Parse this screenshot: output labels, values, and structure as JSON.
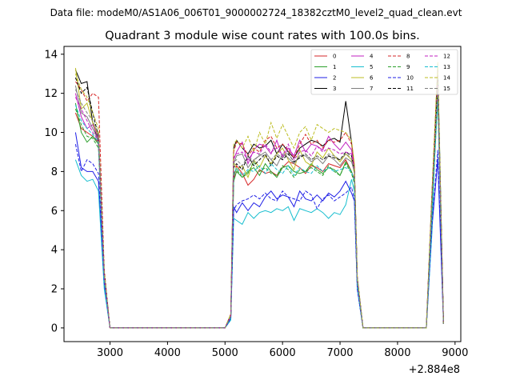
{
  "figure": {
    "suptitle": "Data file: modeM0/AS1A06_006T01_9000002724_18382cztM0_level2_quad_clean.evt"
  },
  "chart_data": {
    "type": "line",
    "title": "Quadrant 3 module wise count rates with 100.0s bins.",
    "xlabel": "",
    "ylabel": "",
    "x_offset_label": "+2.884e8",
    "xlim": [
      2200,
      9100
    ],
    "ylim": [
      -0.7,
      14.4
    ],
    "xticks": [
      3000,
      4000,
      5000,
      6000,
      7000,
      8000,
      9000
    ],
    "yticks": [
      0,
      2,
      4,
      6,
      8,
      10,
      12,
      14
    ],
    "grid": false,
    "legend": {
      "location": "top-right",
      "ncol": 4
    },
    "x": [
      2400,
      2500,
      2600,
      2700,
      2800,
      2900,
      3000,
      3100,
      3200,
      3300,
      3400,
      3500,
      3600,
      3700,
      3800,
      3900,
      4000,
      4100,
      4200,
      4300,
      4400,
      4500,
      4600,
      4700,
      4800,
      4900,
      5000,
      5100,
      5150,
      5200,
      5300,
      5400,
      5500,
      5600,
      5700,
      5800,
      5900,
      6000,
      6100,
      6200,
      6300,
      6400,
      6500,
      6600,
      6700,
      6800,
      6900,
      7000,
      7100,
      7200,
      7250,
      7300,
      7400,
      7500,
      7600,
      7700,
      7800,
      7900,
      8000,
      8100,
      8200,
      8300,
      8400,
      8500,
      8600,
      8700,
      8800
    ],
    "series": [
      {
        "name": "0",
        "color": "#d62728",
        "dash": false,
        "values": [
          11.0,
          10.2,
          10.0,
          9.8,
          9.5,
          2.5,
          0,
          0,
          0,
          0,
          0,
          0,
          0,
          0,
          0,
          0,
          0,
          0,
          0,
          0,
          0,
          0,
          0,
          0,
          0,
          0,
          0,
          0.6,
          7.6,
          8.3,
          7.9,
          7.3,
          7.6,
          8.1,
          7.9,
          8.0,
          7.8,
          8.2,
          8.5,
          8.4,
          8.2,
          7.9,
          8.3,
          8.2,
          8.0,
          8.4,
          8.3,
          8.2,
          8.6,
          8.0,
          7.6,
          2.3,
          0,
          0,
          0,
          0,
          0,
          0,
          0,
          0,
          0,
          0,
          0,
          0,
          6.0,
          12.5,
          0.2
        ]
      },
      {
        "name": "1",
        "color": "#2ca02c",
        "dash": false,
        "values": [
          11.5,
          10.0,
          9.5,
          9.8,
          9.4,
          2.5,
          0,
          0,
          0,
          0,
          0,
          0,
          0,
          0,
          0,
          0,
          0,
          0,
          0,
          0,
          0,
          0,
          0,
          0,
          0,
          0,
          0,
          0.6,
          7.5,
          8.0,
          7.7,
          8.0,
          8.2,
          7.8,
          8.4,
          8.0,
          7.7,
          8.2,
          8.3,
          8.0,
          7.9,
          8.0,
          8.4,
          8.1,
          7.9,
          8.2,
          8.1,
          7.8,
          8.5,
          8.0,
          7.5,
          2.3,
          0,
          0,
          0,
          0,
          0,
          0,
          0,
          0,
          0,
          0,
          0,
          0,
          6.2,
          11.9,
          0.2
        ]
      },
      {
        "name": "2",
        "color": "#1f1fe6",
        "dash": false,
        "values": [
          10.0,
          8.2,
          8.0,
          8.0,
          7.5,
          2.2,
          0,
          0,
          0,
          0,
          0,
          0,
          0,
          0,
          0,
          0,
          0,
          0,
          0,
          0,
          0,
          0,
          0,
          0,
          0,
          0,
          0,
          0.5,
          6.2,
          5.9,
          6.4,
          6.0,
          6.4,
          6.2,
          6.7,
          7.0,
          6.6,
          6.8,
          6.7,
          6.2,
          7.0,
          6.6,
          6.5,
          6.8,
          6.5,
          6.9,
          6.7,
          7.0,
          7.5,
          6.9,
          6.5,
          2.0,
          0,
          0,
          0,
          0,
          0,
          0,
          0,
          0,
          0,
          0,
          0,
          0,
          5.2,
          8.6,
          0.2
        ]
      },
      {
        "name": "3",
        "color": "#000000",
        "dash": false,
        "values": [
          13.2,
          12.5,
          12.6,
          10.5,
          9.5,
          2.8,
          0,
          0,
          0,
          0,
          0,
          0,
          0,
          0,
          0,
          0,
          0,
          0,
          0,
          0,
          0,
          0,
          0,
          0,
          0,
          0,
          0,
          0.7,
          9.2,
          9.6,
          9.2,
          8.9,
          9.4,
          9.2,
          9.3,
          9.6,
          8.9,
          9.4,
          9.0,
          8.7,
          9.2,
          9.4,
          9.6,
          9.5,
          9.3,
          9.6,
          9.7,
          9.5,
          11.6,
          9.5,
          8.2,
          2.6,
          0,
          0,
          0,
          0,
          0,
          0,
          0,
          0,
          0,
          0,
          0,
          0,
          7.0,
          13.3,
          0.2
        ]
      },
      {
        "name": "4",
        "color": "#c020c0",
        "dash": false,
        "values": [
          12.0,
          10.8,
          10.2,
          10.4,
          9.7,
          2.6,
          0,
          0,
          0,
          0,
          0,
          0,
          0,
          0,
          0,
          0,
          0,
          0,
          0,
          0,
          0,
          0,
          0,
          0,
          0,
          0,
          0,
          0.6,
          8.6,
          9.0,
          9.5,
          8.4,
          9.1,
          9.4,
          9.3,
          8.9,
          9.6,
          8.7,
          9.2,
          8.8,
          9.6,
          9.0,
          9.4,
          9.3,
          9.1,
          9.8,
          9.4,
          9.1,
          9.5,
          9.1,
          8.2,
          2.4,
          0,
          0,
          0,
          0,
          0,
          0,
          0,
          0,
          0,
          0,
          0,
          0,
          6.8,
          13.0,
          0.2
        ]
      },
      {
        "name": "5",
        "color": "#17becf",
        "dash": false,
        "values": [
          8.6,
          7.8,
          7.5,
          7.6,
          7.0,
          2.0,
          0,
          0,
          0,
          0,
          0,
          0,
          0,
          0,
          0,
          0,
          0,
          0,
          0,
          0,
          0,
          0,
          0,
          0,
          0,
          0,
          0,
          0.4,
          5.6,
          5.5,
          5.3,
          5.9,
          5.6,
          5.9,
          6.0,
          5.9,
          6.1,
          6.0,
          6.2,
          5.5,
          6.1,
          6.0,
          5.9,
          6.1,
          5.9,
          5.6,
          5.9,
          5.8,
          6.3,
          7.6,
          7.0,
          2.0,
          0,
          0,
          0,
          0,
          0,
          0,
          0,
          0,
          0,
          0,
          0,
          0,
          5.0,
          13.5,
          0.2
        ]
      },
      {
        "name": "6",
        "color": "#bcbd22",
        "dash": false,
        "values": [
          13.3,
          11.2,
          11.5,
          10.5,
          9.8,
          2.7,
          0,
          0,
          0,
          0,
          0,
          0,
          0,
          0,
          0,
          0,
          0,
          0,
          0,
          0,
          0,
          0,
          0,
          0,
          0,
          0,
          0,
          0.7,
          8.5,
          8.1,
          8.3,
          7.7,
          8.6,
          8.2,
          8.8,
          8.4,
          8.9,
          9.2,
          8.6,
          8.1,
          9.1,
          8.5,
          8.3,
          9.0,
          8.7,
          9.2,
          8.8,
          8.5,
          8.9,
          8.6,
          7.9,
          2.4,
          0,
          0,
          0,
          0,
          0,
          0,
          0,
          0,
          0,
          0,
          0,
          0,
          6.5,
          12.6,
          0.2
        ]
      },
      {
        "name": "7",
        "color": "#7f7f7f",
        "dash": false,
        "values": [
          12.4,
          11.0,
          10.8,
          10.2,
          9.6,
          2.6,
          0,
          0,
          0,
          0,
          0,
          0,
          0,
          0,
          0,
          0,
          0,
          0,
          0,
          0,
          0,
          0,
          0,
          0,
          0,
          0,
          0,
          0.6,
          8.4,
          8.8,
          8.9,
          8.2,
          8.6,
          8.8,
          9.0,
          8.6,
          8.3,
          8.9,
          8.7,
          8.4,
          8.8,
          8.8,
          8.5,
          8.7,
          8.4,
          8.8,
          8.6,
          8.3,
          8.7,
          8.5,
          8.0,
          2.4,
          0,
          0,
          0,
          0,
          0,
          0,
          0,
          0,
          0,
          0,
          0,
          0,
          6.4,
          12.2,
          0.2
        ]
      },
      {
        "name": "8",
        "color": "#d62728",
        "dash": true,
        "values": [
          12.6,
          12.2,
          11.6,
          12.0,
          11.8,
          3.0,
          0,
          0,
          0,
          0,
          0,
          0,
          0,
          0,
          0,
          0,
          0,
          0,
          0,
          0,
          0,
          0,
          0,
          0,
          0,
          0,
          0,
          0.7,
          9.0,
          9.5,
          9.4,
          8.8,
          9.2,
          9.0,
          9.6,
          9.8,
          9.2,
          9.4,
          9.1,
          8.7,
          9.4,
          9.9,
          9.4,
          9.6,
          9.2,
          9.6,
          9.5,
          9.6,
          10.0,
          9.4,
          8.3,
          2.6,
          0,
          0,
          0,
          0,
          0,
          0,
          0,
          0,
          0,
          0,
          0,
          0,
          7.0,
          13.2,
          0.2
        ]
      },
      {
        "name": "9",
        "color": "#2ca02c",
        "dash": true,
        "values": [
          11.2,
          10.4,
          9.8,
          9.7,
          9.2,
          2.5,
          0,
          0,
          0,
          0,
          0,
          0,
          0,
          0,
          0,
          0,
          0,
          0,
          0,
          0,
          0,
          0,
          0,
          0,
          0,
          0,
          0,
          0.6,
          7.9,
          8.1,
          7.7,
          7.9,
          8.5,
          8.0,
          8.2,
          7.9,
          7.8,
          8.3,
          8.1,
          7.7,
          8.1,
          8.0,
          8.2,
          8.0,
          7.8,
          8.3,
          8.0,
          7.8,
          8.4,
          7.9,
          7.4,
          2.3,
          0,
          0,
          0,
          0,
          0,
          0,
          0,
          0,
          0,
          0,
          0,
          0,
          6.0,
          12.0,
          0.2
        ]
      },
      {
        "name": "10",
        "color": "#1f1fe6",
        "dash": true,
        "values": [
          9.4,
          8.0,
          8.6,
          8.4,
          7.9,
          2.3,
          0,
          0,
          0,
          0,
          0,
          0,
          0,
          0,
          0,
          0,
          0,
          0,
          0,
          0,
          0,
          0,
          0,
          0,
          0,
          0,
          0,
          0.5,
          6.0,
          6.3,
          6.5,
          6.6,
          6.8,
          6.6,
          6.9,
          6.6,
          6.5,
          7.0,
          6.7,
          6.6,
          6.5,
          7.0,
          6.8,
          6.1,
          6.6,
          6.8,
          6.5,
          6.7,
          6.9,
          7.2,
          6.6,
          2.0,
          0,
          0,
          0,
          0,
          0,
          0,
          0,
          0,
          0,
          0,
          0,
          0,
          5.3,
          9.1,
          0.2
        ]
      },
      {
        "name": "11",
        "color": "#000000",
        "dash": true,
        "values": [
          12.8,
          12.0,
          12.3,
          11.0,
          9.8,
          2.8,
          0,
          0,
          0,
          0,
          0,
          0,
          0,
          0,
          0,
          0,
          0,
          0,
          0,
          0,
          0,
          0,
          0,
          0,
          0,
          0,
          0,
          0.6,
          8.2,
          8.4,
          8.1,
          8.8,
          8.3,
          8.6,
          8.9,
          8.3,
          8.8,
          8.6,
          8.9,
          8.5,
          8.7,
          8.9,
          8.6,
          8.8,
          8.6,
          8.8,
          8.7,
          8.6,
          9.0,
          8.8,
          8.1,
          2.5,
          0,
          0,
          0,
          0,
          0,
          0,
          0,
          0,
          0,
          0,
          0,
          0,
          6.7,
          12.8,
          0.2
        ]
      },
      {
        "name": "12",
        "color": "#c020c0",
        "dash": true,
        "values": [
          11.8,
          11.2,
          10.6,
          10.0,
          9.6,
          2.6,
          0,
          0,
          0,
          0,
          0,
          0,
          0,
          0,
          0,
          0,
          0,
          0,
          0,
          0,
          0,
          0,
          0,
          0,
          0,
          0,
          0,
          0.6,
          8.7,
          8.9,
          9.0,
          8.6,
          9.0,
          8.9,
          9.4,
          9.0,
          9.2,
          8.8,
          9.4,
          8.6,
          9.0,
          9.1,
          8.8,
          9.3,
          9.0,
          9.2,
          9.1,
          8.9,
          9.0,
          8.9,
          8.1,
          2.4,
          0,
          0,
          0,
          0,
          0,
          0,
          0,
          0,
          0,
          0,
          0,
          0,
          6.6,
          12.4,
          0.2
        ]
      },
      {
        "name": "13",
        "color": "#17becf",
        "dash": true,
        "values": [
          11.4,
          10.6,
          10.2,
          9.9,
          9.5,
          2.5,
          0,
          0,
          0,
          0,
          0,
          0,
          0,
          0,
          0,
          0,
          0,
          0,
          0,
          0,
          0,
          0,
          0,
          0,
          0,
          0,
          0,
          0.6,
          7.8,
          8.2,
          7.8,
          8.1,
          8.0,
          8.3,
          7.9,
          8.4,
          8.1,
          7.9,
          8.3,
          7.8,
          8.2,
          8.0,
          7.9,
          8.3,
          8.0,
          8.2,
          8.0,
          8.1,
          8.2,
          8.0,
          7.5,
          2.3,
          0,
          0,
          0,
          0,
          0,
          0,
          0,
          0,
          0,
          0,
          0,
          0,
          6.1,
          11.6,
          0.2
        ]
      },
      {
        "name": "14",
        "color": "#bcbd22",
        "dash": true,
        "values": [
          13.0,
          12.2,
          11.8,
          11.0,
          10.2,
          2.9,
          0,
          0,
          0,
          0,
          0,
          0,
          0,
          0,
          0,
          0,
          0,
          0,
          0,
          0,
          0,
          0,
          0,
          0,
          0,
          0,
          0,
          0.7,
          9.4,
          9.6,
          9.2,
          9.8,
          9.0,
          10.0,
          9.4,
          10.5,
          9.7,
          10.4,
          9.8,
          9.2,
          10.0,
          10.3,
          9.6,
          10.4,
          10.2,
          10.0,
          10.2,
          10.1,
          10.0,
          9.6,
          8.4,
          2.6,
          0,
          0,
          0,
          0,
          0,
          0,
          0,
          0,
          0,
          0,
          0,
          0,
          7.1,
          13.6,
          0.2
        ]
      },
      {
        "name": "15",
        "color": "#7f7f7f",
        "dash": true,
        "values": [
          12.2,
          11.5,
          11.0,
          10.6,
          9.9,
          2.7,
          0,
          0,
          0,
          0,
          0,
          0,
          0,
          0,
          0,
          0,
          0,
          0,
          0,
          0,
          0,
          0,
          0,
          0,
          0,
          0,
          0,
          0.6,
          8.5,
          8.6,
          8.3,
          8.8,
          8.5,
          8.9,
          8.7,
          8.6,
          8.9,
          8.7,
          9.0,
          8.4,
          8.8,
          8.9,
          8.6,
          8.8,
          8.6,
          8.9,
          8.8,
          8.6,
          8.9,
          8.7,
          8.0,
          2.5,
          0,
          0,
          0,
          0,
          0,
          0,
          0,
          0,
          0,
          0,
          0,
          0,
          6.5,
          12.3,
          0.2
        ]
      }
    ]
  }
}
